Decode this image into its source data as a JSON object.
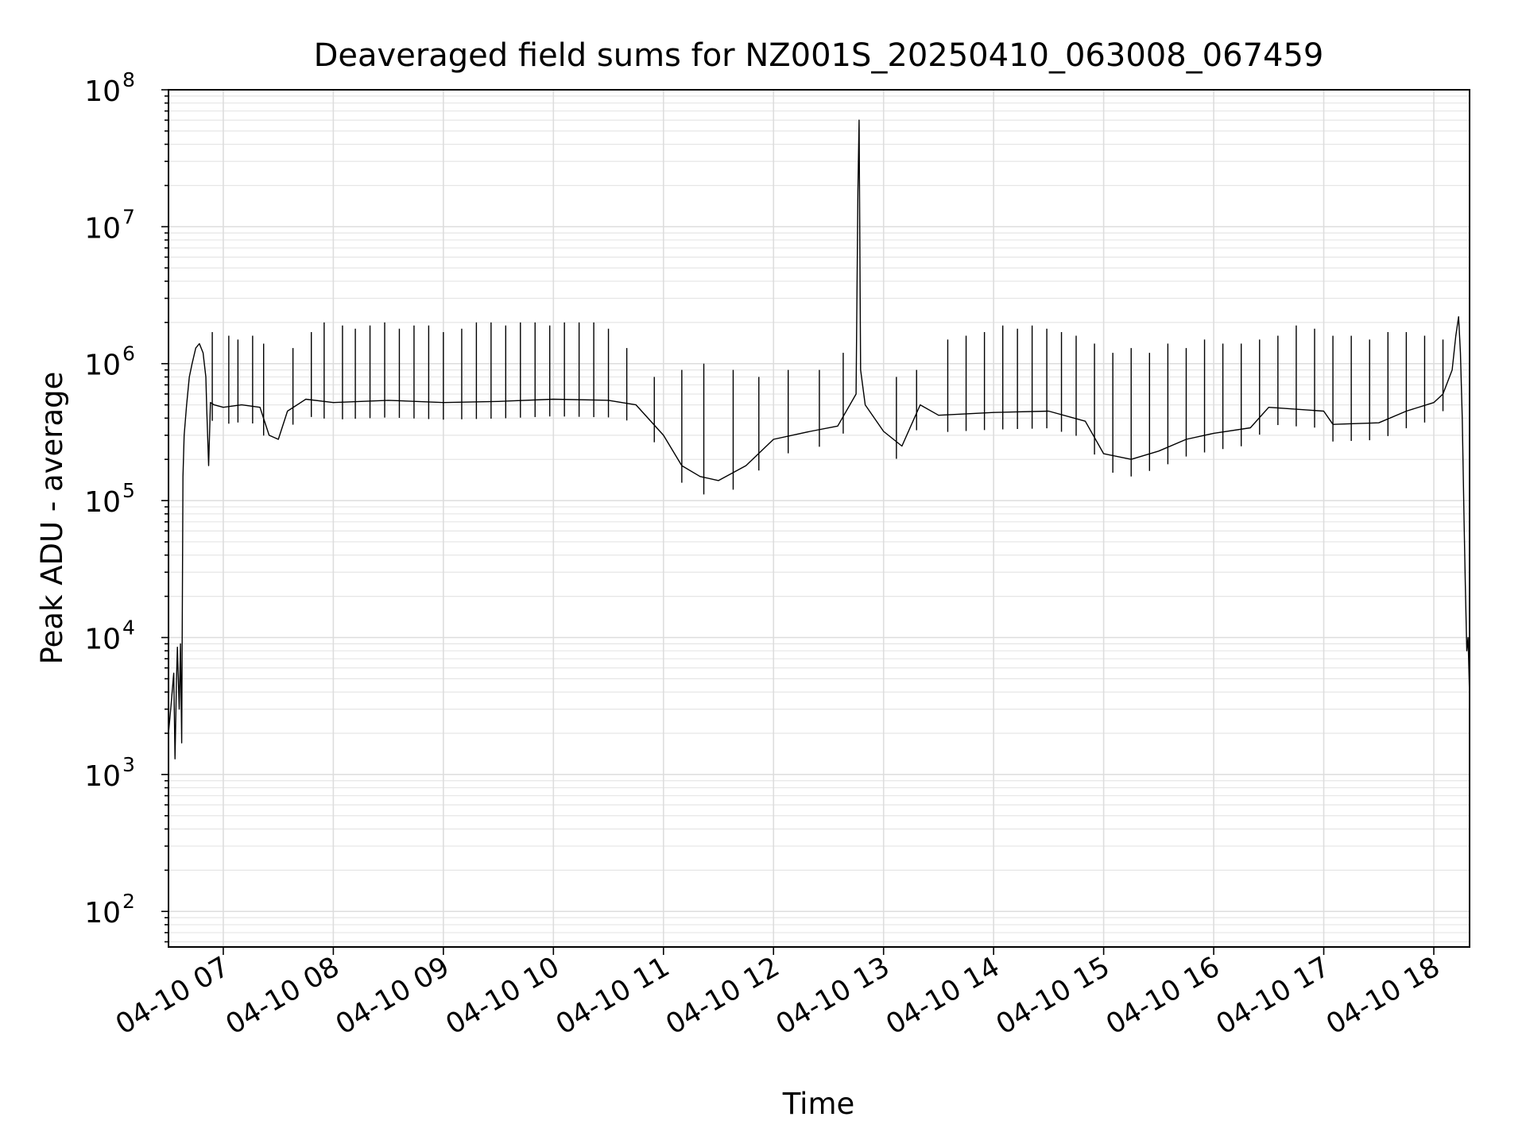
{
  "chart_data": {
    "type": "line",
    "title": "Deaveraged field sums for NZ001S_20250410_063008_067459",
    "xlabel": "Time",
    "ylabel": "Peak ADU - average",
    "x_axis_type": "datetime",
    "y_scale": "log",
    "grid": "major and minor",
    "legend": "none",
    "line_color": "#000000",
    "xlim": [
      "2025-04-10 06:30:08",
      "2025-04-10 18:19:30"
    ],
    "ylim": [
      55,
      100000000
    ],
    "x_ticks": [
      "2025-04-10 07:00",
      "2025-04-10 08:00",
      "2025-04-10 09:00",
      "2025-04-10 10:00",
      "2025-04-10 11:00",
      "2025-04-10 12:00",
      "2025-04-10 13:00",
      "2025-04-10 14:00",
      "2025-04-10 15:00",
      "2025-04-10 16:00",
      "2025-04-10 17:00",
      "2025-04-10 18:00"
    ],
    "x_tick_labels": [
      "04-10 07",
      "04-10 08",
      "04-10 09",
      "04-10 10",
      "04-10 11",
      "04-10 12",
      "04-10 13",
      "04-10 14",
      "04-10 15",
      "04-10 16",
      "04-10 17",
      "04-10 18"
    ],
    "y_ticks": [
      {
        "value": 100,
        "mantissa": "10",
        "exponent": "2"
      },
      {
        "value": 1000,
        "mantissa": "10",
        "exponent": "3"
      },
      {
        "value": 10000,
        "mantissa": "10",
        "exponent": "4"
      },
      {
        "value": 100000,
        "mantissa": "10",
        "exponent": "5"
      },
      {
        "value": 1000000,
        "mantissa": "10",
        "exponent": "6"
      },
      {
        "value": 10000000,
        "mantissa": "10",
        "exponent": "7"
      },
      {
        "value": 100000000,
        "mantissa": "10",
        "exponent": "8"
      }
    ],
    "series": [
      {
        "points": [
          [
            "2025-04-10 06:30:08",
            2000
          ],
          [
            "2025-04-10 06:31:30",
            3200
          ],
          [
            "2025-04-10 06:33:00",
            5500
          ],
          [
            "2025-04-10 06:33:40",
            1300
          ],
          [
            "2025-04-10 06:34:30",
            5000
          ],
          [
            "2025-04-10 06:35:00",
            8500
          ],
          [
            "2025-04-10 06:36:00",
            3000
          ],
          [
            "2025-04-10 06:36:40",
            9000
          ],
          [
            "2025-04-10 06:37:20",
            1700
          ],
          [
            "2025-04-10 06:38:00",
            150000
          ],
          [
            "2025-04-10 06:38:40",
            300000
          ],
          [
            "2025-04-10 06:40:00",
            500000
          ],
          [
            "2025-04-10 06:41:30",
            800000
          ],
          [
            "2025-04-10 06:43:00",
            1000000
          ],
          [
            "2025-04-10 06:45:00",
            1300000
          ],
          [
            "2025-04-10 06:47:00",
            1400000
          ],
          [
            "2025-04-10 06:49:00",
            1200000
          ],
          [
            "2025-04-10 06:50:30",
            800000
          ],
          [
            "2025-04-10 06:51:00",
            450000
          ],
          [
            "2025-04-10 06:52:00",
            180000
          ],
          [
            "2025-04-10 06:53:00",
            520000
          ],
          [
            "2025-04-10 06:55:00",
            500000
          ],
          [
            "2025-04-10 07:00:00",
            480000
          ],
          [
            "2025-04-10 07:10:00",
            500000
          ],
          [
            "2025-04-10 07:20:00",
            480000
          ],
          [
            "2025-04-10 07:25:00",
            300000
          ],
          [
            "2025-04-10 07:30:00",
            280000
          ],
          [
            "2025-04-10 07:35:00",
            450000
          ],
          [
            "2025-04-10 07:45:00",
            550000
          ],
          [
            "2025-04-10 08:00:00",
            520000
          ],
          [
            "2025-04-10 08:30:00",
            540000
          ],
          [
            "2025-04-10 09:00:00",
            520000
          ],
          [
            "2025-04-10 09:30:00",
            530000
          ],
          [
            "2025-04-10 10:00:00",
            550000
          ],
          [
            "2025-04-10 10:30:00",
            540000
          ],
          [
            "2025-04-10 10:45:00",
            500000
          ],
          [
            "2025-04-10 11:00:00",
            300000
          ],
          [
            "2025-04-10 11:10:00",
            180000
          ],
          [
            "2025-04-10 11:20:00",
            150000
          ],
          [
            "2025-04-10 11:30:00",
            140000
          ],
          [
            "2025-04-10 11:45:00",
            180000
          ],
          [
            "2025-04-10 12:00:00",
            280000
          ],
          [
            "2025-04-10 12:20:00",
            320000
          ],
          [
            "2025-04-10 12:35:00",
            350000
          ],
          [
            "2025-04-10 12:45:00",
            600000
          ],
          [
            "2025-04-10 12:46:00",
            18000000
          ],
          [
            "2025-04-10 12:46:40",
            60000000
          ],
          [
            "2025-04-10 12:47:30",
            900000
          ],
          [
            "2025-04-10 12:50:00",
            500000
          ],
          [
            "2025-04-10 13:00:00",
            320000
          ],
          [
            "2025-04-10 13:10:00",
            250000
          ],
          [
            "2025-04-10 13:20:00",
            500000
          ],
          [
            "2025-04-10 13:30:00",
            420000
          ],
          [
            "2025-04-10 14:00:00",
            440000
          ],
          [
            "2025-04-10 14:30:00",
            450000
          ],
          [
            "2025-04-10 14:50:00",
            380000
          ],
          [
            "2025-04-10 15:00:00",
            220000
          ],
          [
            "2025-04-10 15:15:00",
            200000
          ],
          [
            "2025-04-10 15:30:00",
            230000
          ],
          [
            "2025-04-10 15:45:00",
            280000
          ],
          [
            "2025-04-10 16:00:00",
            310000
          ],
          [
            "2025-04-10 16:20:00",
            340000
          ],
          [
            "2025-04-10 16:30:00",
            480000
          ],
          [
            "2025-04-10 17:00:00",
            450000
          ],
          [
            "2025-04-10 17:05:00",
            360000
          ],
          [
            "2025-04-10 17:30:00",
            370000
          ],
          [
            "2025-04-10 17:45:00",
            450000
          ],
          [
            "2025-04-10 18:00:00",
            520000
          ],
          [
            "2025-04-10 18:05:00",
            600000
          ],
          [
            "2025-04-10 18:10:00",
            900000
          ],
          [
            "2025-04-10 18:12:00",
            1600000
          ],
          [
            "2025-04-10 18:13:30",
            2200000
          ],
          [
            "2025-04-10 18:14:30",
            1200000
          ],
          [
            "2025-04-10 18:15:30",
            400000
          ],
          [
            "2025-04-10 18:16:30",
            70000
          ],
          [
            "2025-04-10 18:17:10",
            25000
          ],
          [
            "2025-04-10 18:18:00",
            8000
          ],
          [
            "2025-04-10 18:18:40",
            10000
          ],
          [
            "2025-04-10 18:19:30",
            3700
          ]
        ]
      }
    ],
    "spikes": [
      {
        "time": "2025-04-10 06:54:00",
        "peak": 1700000
      },
      {
        "time": "2025-04-10 07:03:00",
        "peak": 1600000
      },
      {
        "time": "2025-04-10 07:08:00",
        "peak": 1500000
      },
      {
        "time": "2025-04-10 07:16:00",
        "peak": 1600000
      },
      {
        "time": "2025-04-10 07:22:00",
        "peak": 1400000
      },
      {
        "time": "2025-04-10 07:38:00",
        "peak": 1300000
      },
      {
        "time": "2025-04-10 07:48:00",
        "peak": 1700000
      },
      {
        "time": "2025-04-10 07:55:00",
        "peak": 2000000
      },
      {
        "time": "2025-04-10 08:05:00",
        "peak": 1900000
      },
      {
        "time": "2025-04-10 08:12:00",
        "peak": 1800000
      },
      {
        "time": "2025-04-10 08:20:00",
        "peak": 1900000
      },
      {
        "time": "2025-04-10 08:28:00",
        "peak": 2000000
      },
      {
        "time": "2025-04-10 08:36:00",
        "peak": 1800000
      },
      {
        "time": "2025-04-10 08:44:00",
        "peak": 1900000
      },
      {
        "time": "2025-04-10 08:52:00",
        "peak": 1900000
      },
      {
        "time": "2025-04-10 09:00:00",
        "peak": 1700000
      },
      {
        "time": "2025-04-10 09:10:00",
        "peak": 1800000
      },
      {
        "time": "2025-04-10 09:18:00",
        "peak": 2000000
      },
      {
        "time": "2025-04-10 09:26:00",
        "peak": 2000000
      },
      {
        "time": "2025-04-10 09:34:00",
        "peak": 1900000
      },
      {
        "time": "2025-04-10 09:42:00",
        "peak": 2000000
      },
      {
        "time": "2025-04-10 09:50:00",
        "peak": 2000000
      },
      {
        "time": "2025-04-10 09:58:00",
        "peak": 1900000
      },
      {
        "time": "2025-04-10 10:06:00",
        "peak": 2000000
      },
      {
        "time": "2025-04-10 10:14:00",
        "peak": 2000000
      },
      {
        "time": "2025-04-10 10:22:00",
        "peak": 2000000
      },
      {
        "time": "2025-04-10 10:30:00",
        "peak": 1800000
      },
      {
        "time": "2025-04-10 10:40:00",
        "peak": 1300000
      },
      {
        "time": "2025-04-10 10:55:00",
        "peak": 800000
      },
      {
        "time": "2025-04-10 11:10:00",
        "peak": 900000
      },
      {
        "time": "2025-04-10 11:22:00",
        "peak": 1000000
      },
      {
        "time": "2025-04-10 11:38:00",
        "peak": 900000
      },
      {
        "time": "2025-04-10 11:52:00",
        "peak": 800000
      },
      {
        "time": "2025-04-10 12:08:00",
        "peak": 900000
      },
      {
        "time": "2025-04-10 12:25:00",
        "peak": 900000
      },
      {
        "time": "2025-04-10 12:38:00",
        "peak": 1200000
      },
      {
        "time": "2025-04-10 13:07:00",
        "peak": 800000
      },
      {
        "time": "2025-04-10 13:18:00",
        "peak": 900000
      },
      {
        "time": "2025-04-10 13:35:00",
        "peak": 1500000
      },
      {
        "time": "2025-04-10 13:45:00",
        "peak": 1600000
      },
      {
        "time": "2025-04-10 13:55:00",
        "peak": 1700000
      },
      {
        "time": "2025-04-10 14:05:00",
        "peak": 1900000
      },
      {
        "time": "2025-04-10 14:13:00",
        "peak": 1800000
      },
      {
        "time": "2025-04-10 14:21:00",
        "peak": 1900000
      },
      {
        "time": "2025-04-10 14:29:00",
        "peak": 1800000
      },
      {
        "time": "2025-04-10 14:37:00",
        "peak": 1700000
      },
      {
        "time": "2025-04-10 14:45:00",
        "peak": 1600000
      },
      {
        "time": "2025-04-10 14:55:00",
        "peak": 1400000
      },
      {
        "time": "2025-04-10 15:05:00",
        "peak": 1200000
      },
      {
        "time": "2025-04-10 15:15:00",
        "peak": 1300000
      },
      {
        "time": "2025-04-10 15:25:00",
        "peak": 1200000
      },
      {
        "time": "2025-04-10 15:35:00",
        "peak": 1400000
      },
      {
        "time": "2025-04-10 15:45:00",
        "peak": 1300000
      },
      {
        "time": "2025-04-10 15:55:00",
        "peak": 1500000
      },
      {
        "time": "2025-04-10 16:05:00",
        "peak": 1400000
      },
      {
        "time": "2025-04-10 16:15:00",
        "peak": 1400000
      },
      {
        "time": "2025-04-10 16:25:00",
        "peak": 1500000
      },
      {
        "time": "2025-04-10 16:35:00",
        "peak": 1600000
      },
      {
        "time": "2025-04-10 16:45:00",
        "peak": 1900000
      },
      {
        "time": "2025-04-10 16:55:00",
        "peak": 1800000
      },
      {
        "time": "2025-04-10 17:05:00",
        "peak": 1600000
      },
      {
        "time": "2025-04-10 17:15:00",
        "peak": 1600000
      },
      {
        "time": "2025-04-10 17:25:00",
        "peak": 1500000
      },
      {
        "time": "2025-04-10 17:35:00",
        "peak": 1700000
      },
      {
        "time": "2025-04-10 17:45:00",
        "peak": 1700000
      },
      {
        "time": "2025-04-10 17:55:00",
        "peak": 1600000
      },
      {
        "time": "2025-04-10 18:05:00",
        "peak": 1500000
      }
    ]
  }
}
